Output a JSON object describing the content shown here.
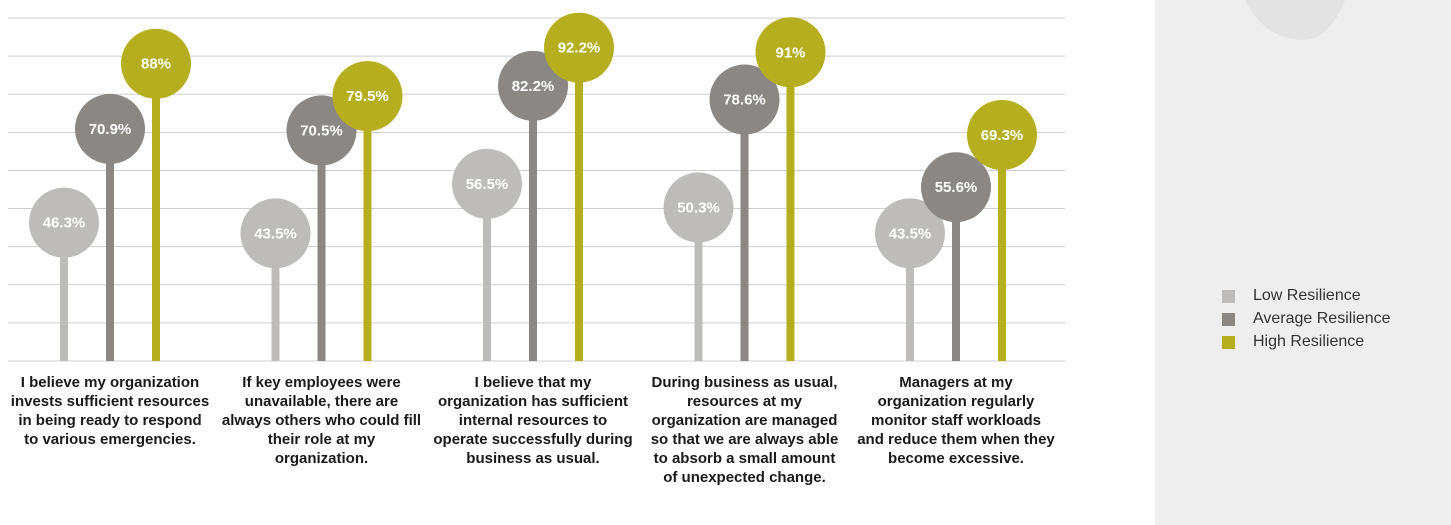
{
  "chart_data": {
    "type": "lollipop",
    "categories": [
      "I believe my organization invests sufficient resources in being ready to respond to various emergencies.",
      "If key employees were unavailable, there are always others who could fill their role at my organization.",
      "I believe that my organization has sufficient internal resources to operate successfully during business as usual.",
      "During business as usual, resources at my organization are managed so that we are always able to absorb a small amount of unexpected change.",
      "Managers at my organization regularly monitor staff workloads and reduce them when they become excessive."
    ],
    "series": [
      {
        "name": "Low Resilience",
        "color": "#bdbcbb",
        "values": [
          46.3,
          43.5,
          56.5,
          50.3,
          43.5
        ],
        "value_labels": [
          "46.3%",
          "43.5%",
          "56.5%",
          "50.3%",
          "43.5%"
        ]
      },
      {
        "name": "Average Resilience",
        "color": "#8b8785",
        "values": [
          70.9,
          70.5,
          82.2,
          78.6,
          55.6
        ],
        "value_labels": [
          "70.9%",
          "70.5%",
          "82.2%",
          "78.6%",
          "55.6%"
        ]
      },
      {
        "name": "High Resilience",
        "color": "#b5ae1f",
        "values": [
          88,
          79.5,
          92.2,
          91,
          69.3
        ],
        "value_labels": [
          "88%",
          "79.5%",
          "92.2%",
          "91%",
          "69.3%"
        ]
      }
    ],
    "ylim": [
      10,
      100
    ],
    "yticks": [
      10,
      20,
      30,
      40,
      50,
      60,
      70,
      80,
      90,
      100
    ],
    "grid": true,
    "legend": "right"
  }
}
